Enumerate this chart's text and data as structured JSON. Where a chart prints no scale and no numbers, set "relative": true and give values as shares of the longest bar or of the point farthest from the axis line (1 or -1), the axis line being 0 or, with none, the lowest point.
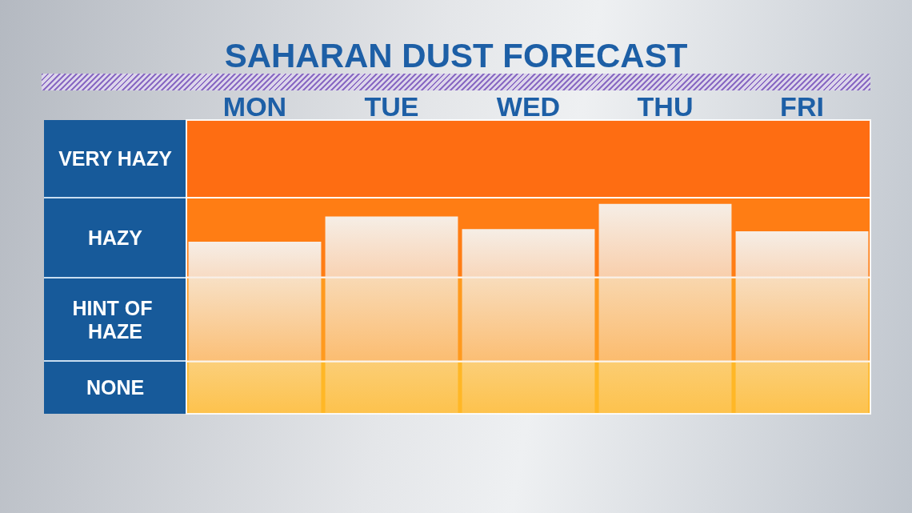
{
  "chart_data": {
    "type": "bar",
    "title": "SAHARAN DUST FORECAST",
    "categories": [
      "MON",
      "TUE",
      "WED",
      "THU",
      "FRI"
    ],
    "values": [
      0.82,
      0.94,
      0.88,
      1,
      0.87
    ],
    "color": "#f6eee6",
    "relative": true,
    "bands": [
      {
        "axis": "y",
        "from": 0,
        "to": 0.25,
        "label": "NONE",
        "color": "#ffb726"
      },
      {
        "axis": "y",
        "from": 0.25,
        "to": 0.65,
        "label": "HINT OF HAZE",
        "color": "#ff9a1e"
      },
      {
        "axis": "y",
        "from": 0.65,
        "to": 1.03,
        "label": "HAZY",
        "color": "#ff7d14"
      },
      {
        "axis": "y",
        "from": 1.03,
        "to": 1.4,
        "label": "VERY HAZY",
        "color": "#fe6d12"
      }
    ]
  }
}
